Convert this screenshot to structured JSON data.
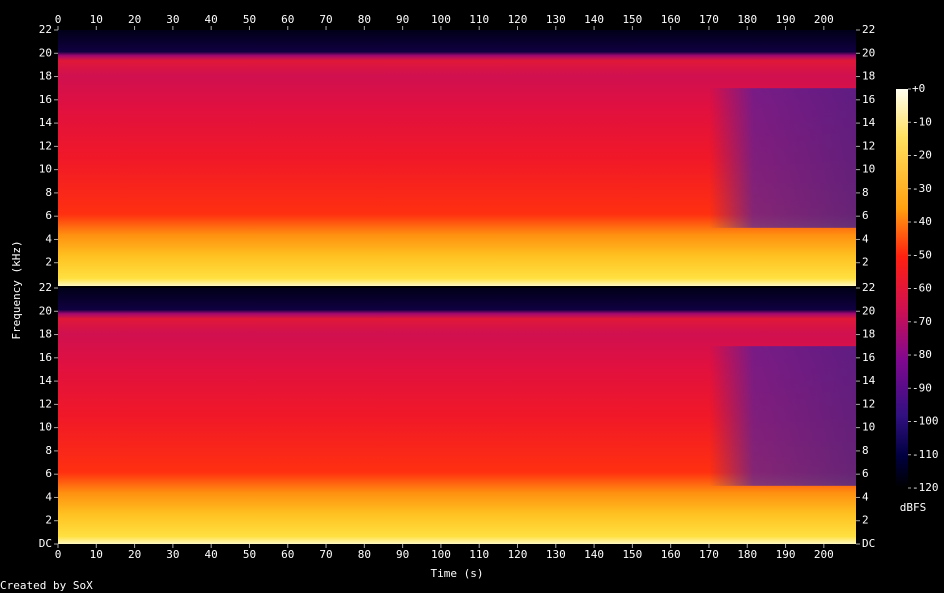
{
  "chart_data": {
    "type": "spectrogram",
    "xlabel": "Time (s)",
    "ylabel": "Frequency (kHz)",
    "xlim": [
      0,
      208.4
    ],
    "xticks": [
      0,
      10,
      20,
      30,
      40,
      50,
      60,
      70,
      80,
      90,
      100,
      110,
      120,
      130,
      140,
      150,
      160,
      170,
      180,
      190,
      200
    ],
    "channels": [
      {
        "ylim": [
          0,
          22
        ],
        "yticks": [
          2,
          4,
          6,
          8,
          10,
          12,
          14,
          16,
          18,
          20,
          22
        ]
      },
      {
        "ylim": [
          0,
          22
        ],
        "yticks": [
          {
            "value": 0,
            "label": "DC"
          },
          2,
          4,
          6,
          8,
          10,
          12,
          14,
          16,
          18,
          20,
          22
        ]
      }
    ],
    "colorbar": {
      "label": "dBFS",
      "lim": [
        -120,
        0
      ],
      "ticks": [
        {
          "value": 0,
          "label": "+0"
        },
        -10,
        -20,
        -30,
        -40,
        -50,
        -60,
        -70,
        -80,
        -90,
        -100,
        -110,
        -120
      ]
    },
    "footer": "Created by SoX"
  }
}
